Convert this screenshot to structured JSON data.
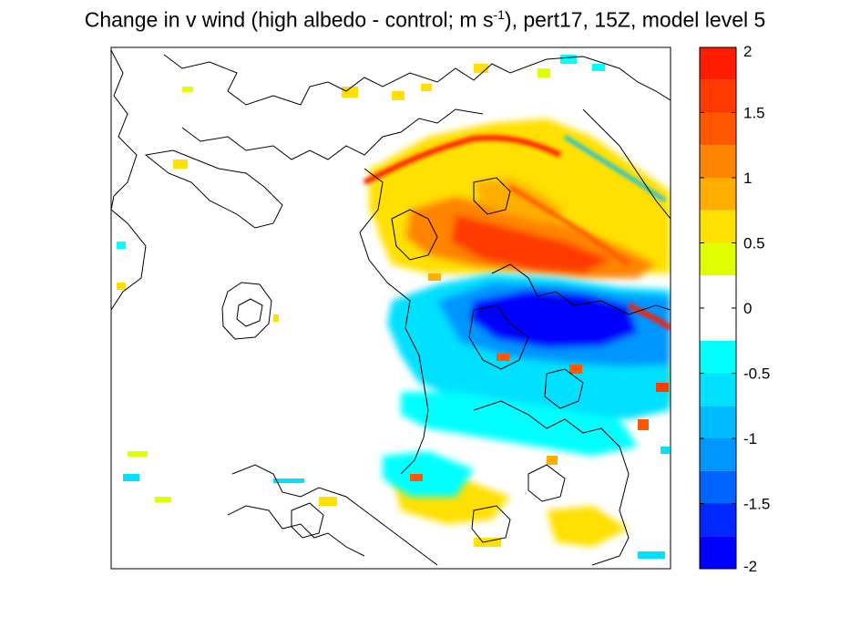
{
  "chart_data": {
    "type": "heatmap",
    "title": {
      "part1": "Change in v wind (high albedo - control; m s",
      "superscript": "-1",
      "part2": "), pert17, 15Z, model level 5"
    },
    "xlabel": "",
    "ylabel": "",
    "grid": false,
    "colorbar": {
      "placement": "right",
      "range": [
        -2,
        2
      ],
      "tick_values": [
        2,
        1.5,
        1,
        0.5,
        0,
        -0.5,
        -1,
        -1.5,
        -2
      ],
      "tick_labels": [
        "2",
        "1.5",
        "1",
        "0.5",
        "0",
        "-0.5",
        "-1",
        "-1.5",
        "-2"
      ],
      "bands": [
        {
          "from": 1.75,
          "to": 2.0,
          "color": "#ff1c00"
        },
        {
          "from": 1.5,
          "to": 1.75,
          "color": "#ff3a00"
        },
        {
          "from": 1.25,
          "to": 1.5,
          "color": "#ff5800"
        },
        {
          "from": 1.0,
          "to": 1.25,
          "color": "#ff8400"
        },
        {
          "from": 0.75,
          "to": 1.0,
          "color": "#ffae00"
        },
        {
          "from": 0.5,
          "to": 0.75,
          "color": "#ffe000"
        },
        {
          "from": 0.25,
          "to": 0.5,
          "color": "#e2ff00"
        },
        {
          "from": -0.25,
          "to": 0.25,
          "color": "#ffffff"
        },
        {
          "from": -0.5,
          "to": -0.25,
          "color": "#00ffff"
        },
        {
          "from": -0.75,
          "to": -0.5,
          "color": "#00e0ff"
        },
        {
          "from": -1.0,
          "to": -0.75,
          "color": "#00bcff"
        },
        {
          "from": -1.25,
          "to": -1.0,
          "color": "#0096ff"
        },
        {
          "from": -1.5,
          "to": -1.25,
          "color": "#0064ff"
        },
        {
          "from": -1.75,
          "to": -1.5,
          "color": "#0028ff"
        },
        {
          "from": -2.0,
          "to": -1.75,
          "color": "#0000ff"
        }
      ]
    },
    "regions": [
      {
        "name": "northern positive band (red streak)",
        "value": 1.9
      },
      {
        "name": "central positive region (orange)",
        "value": 1.1
      },
      {
        "name": "positive fringe (yellow)",
        "value": 0.6
      },
      {
        "name": "central negative region (deep blue)",
        "value": -1.8
      },
      {
        "name": "negative fringe (cyan)",
        "value": -0.6
      }
    ]
  }
}
